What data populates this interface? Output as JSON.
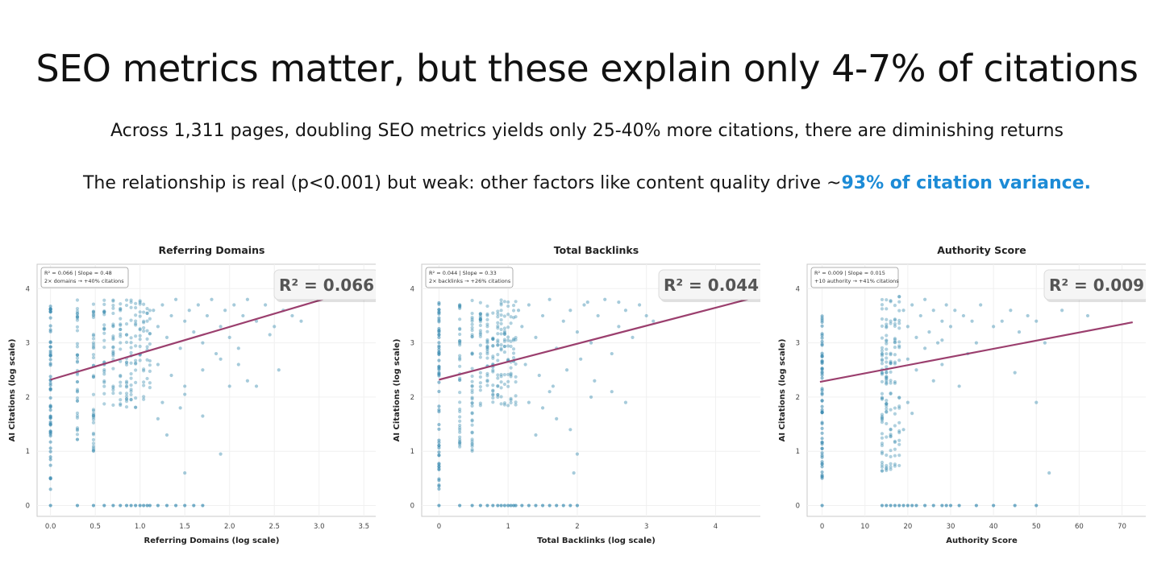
{
  "header": {
    "title": "SEO metrics matter, but these explain only 4-7% of citations",
    "subtitle1": "Across 1,311 pages, doubling SEO metrics yields only 25-40% more citations, there are diminishing returns",
    "subtitle2_prefix": "The relationship is real (p<0.001) but weak: other factors like content quality drive ~",
    "subtitle2_highlight": "93% of citation variance."
  },
  "colors": {
    "points": "#3a8bb0",
    "fit_line": "#9b3f6e",
    "highlight": "#1c8bd6"
  },
  "chart_data": [
    {
      "type": "scatter",
      "title": "Referring Domains",
      "xlabel": "Referring Domains (log scale)",
      "ylabel": "AI Citations (log scale)",
      "xlim": [
        -0.15,
        3.75
      ],
      "ylim": [
        -0.2,
        4.45
      ],
      "xticks": [
        0.0,
        0.5,
        1.0,
        1.5,
        2.0,
        2.5,
        3.0,
        3.5
      ],
      "xticklabels": [
        "0.0",
        "0.5",
        "1.0",
        "1.5",
        "2.0",
        "2.5",
        "3.0",
        "3.5"
      ],
      "yticks": [
        0,
        1,
        2,
        3,
        4
      ],
      "stats_text": [
        "R² = 0.066  |  Slope = 0.48",
        "2× domains → +40% citations"
      ],
      "r2_label": "R² = 0.066",
      "fit": {
        "x0": 0.0,
        "y0": 2.32,
        "x1": 3.1,
        "y1": 3.83
      },
      "x_columns": [
        0.0,
        0.3,
        0.48,
        0.6,
        0.7,
        0.78,
        0.85,
        0.9,
        0.95,
        1.0,
        1.04,
        1.08,
        1.11
      ],
      "scatter_points": [
        [
          1.15,
          3.6
        ],
        [
          1.2,
          3.3
        ],
        [
          1.25,
          3.7
        ],
        [
          1.3,
          3.1
        ],
        [
          1.35,
          3.5
        ],
        [
          1.4,
          3.8
        ],
        [
          1.45,
          2.9
        ],
        [
          1.5,
          3.4
        ],
        [
          1.55,
          3.6
        ],
        [
          1.6,
          3.2
        ],
        [
          1.65,
          3.7
        ],
        [
          1.7,
          3.0
        ],
        [
          1.75,
          3.5
        ],
        [
          1.8,
          3.8
        ],
        [
          1.85,
          2.8
        ],
        [
          1.9,
          3.3
        ],
        [
          1.95,
          3.6
        ],
        [
          2.0,
          3.1
        ],
        [
          2.05,
          3.7
        ],
        [
          2.1,
          2.9
        ],
        [
          2.15,
          3.5
        ],
        [
          2.2,
          3.8
        ],
        [
          2.3,
          3.4
        ],
        [
          2.4,
          3.7
        ],
        [
          2.5,
          3.3
        ],
        [
          2.6,
          3.6
        ],
        [
          2.7,
          3.5
        ],
        [
          1.2,
          2.6
        ],
        [
          1.35,
          2.4
        ],
        [
          1.5,
          2.2
        ],
        [
          1.7,
          2.5
        ],
        [
          1.9,
          2.7
        ],
        [
          2.1,
          2.6
        ],
        [
          2.3,
          2.2
        ],
        [
          2.55,
          2.5
        ],
        [
          1.25,
          1.9
        ],
        [
          1.45,
          1.8
        ],
        [
          1.3,
          1.3
        ],
        [
          1.5,
          2.05
        ],
        [
          1.7,
          1.65
        ],
        [
          1.9,
          0.95
        ],
        [
          1.5,
          0.6
        ],
        [
          1.2,
          1.6
        ],
        [
          2.0,
          2.2
        ],
        [
          2.2,
          2.3
        ],
        [
          2.45,
          3.15
        ],
        [
          2.8,
          3.4
        ]
      ],
      "zero_points": [
        0.0,
        0.3,
        0.48,
        0.6,
        0.7,
        0.78,
        0.85,
        0.9,
        0.95,
        1.0,
        1.04,
        1.08,
        1.11,
        1.2,
        1.3,
        1.4,
        1.5,
        1.6,
        1.7
      ]
    },
    {
      "type": "scatter",
      "title": "Total Backlinks",
      "xlabel": "Total Backlinks (log scale)",
      "ylabel": "AI Citations (log scale)",
      "xlim": [
        -0.25,
        4.8
      ],
      "ylim": [
        -0.2,
        4.45
      ],
      "xticks": [
        0,
        1,
        2,
        3,
        4
      ],
      "xticklabels": [
        "0",
        "1",
        "2",
        "3",
        "4"
      ],
      "yticks": [
        0,
        1,
        2,
        3,
        4
      ],
      "stats_text": [
        "R² = 0.044  |  Slope = 0.33",
        "2× backlinks → +26% citations"
      ],
      "r2_label": "R² = 0.044",
      "fit": {
        "x0": 0.0,
        "y0": 2.32,
        "x1": 4.55,
        "y1": 3.83
      },
      "x_columns": [
        0.0,
        0.3,
        0.48,
        0.6,
        0.7,
        0.78,
        0.85,
        0.9,
        0.95,
        1.0,
        1.04,
        1.08,
        1.11
      ],
      "scatter_points": [
        [
          1.15,
          3.6
        ],
        [
          1.2,
          3.3
        ],
        [
          1.3,
          3.7
        ],
        [
          1.4,
          3.1
        ],
        [
          1.5,
          3.5
        ],
        [
          1.6,
          3.8
        ],
        [
          1.7,
          2.9
        ],
        [
          1.8,
          3.4
        ],
        [
          1.9,
          3.6
        ],
        [
          2.0,
          3.2
        ],
        [
          2.1,
          3.7
        ],
        [
          2.2,
          3.0
        ],
        [
          2.3,
          3.5
        ],
        [
          2.4,
          3.8
        ],
        [
          2.5,
          2.8
        ],
        [
          2.6,
          3.3
        ],
        [
          2.7,
          3.6
        ],
        [
          2.8,
          3.1
        ],
        [
          2.9,
          3.7
        ],
        [
          3.0,
          3.5
        ],
        [
          3.1,
          3.4
        ],
        [
          1.25,
          2.6
        ],
        [
          1.45,
          2.4
        ],
        [
          1.65,
          2.2
        ],
        [
          1.85,
          2.5
        ],
        [
          2.05,
          2.7
        ],
        [
          2.25,
          2.3
        ],
        [
          2.5,
          2.1
        ],
        [
          1.3,
          1.9
        ],
        [
          1.5,
          1.8
        ],
        [
          1.7,
          1.6
        ],
        [
          1.9,
          1.4
        ],
        [
          2.0,
          0.95
        ],
        [
          1.95,
          0.6
        ],
        [
          1.6,
          2.1
        ],
        [
          2.2,
          2.0
        ],
        [
          2.7,
          1.9
        ],
        [
          1.4,
          1.3
        ],
        [
          2.15,
          3.75
        ],
        [
          2.6,
          3.75
        ]
      ],
      "zero_points": [
        0.0,
        0.3,
        0.48,
        0.6,
        0.7,
        0.78,
        0.85,
        0.9,
        0.95,
        1.0,
        1.04,
        1.08,
        1.11,
        1.2,
        1.3,
        1.4,
        1.5,
        1.6,
        1.7,
        1.8,
        1.9,
        2.0
      ]
    },
    {
      "type": "scatter",
      "title": "Authority Score",
      "xlabel": "Authority Score",
      "ylabel": "AI Citations (log scale)",
      "xlim": [
        -3.5,
        78
      ],
      "ylim": [
        -0.2,
        4.45
      ],
      "xticks": [
        0,
        10,
        20,
        30,
        40,
        50,
        60,
        70
      ],
      "xticklabels": [
        "0",
        "10",
        "20",
        "30",
        "40",
        "50",
        "60",
        "70"
      ],
      "yticks": [
        0,
        1,
        2,
        3,
        4
      ],
      "stats_text": [
        "R² = 0.009  |  Slope = 0.015",
        "+10 authority → +41% citations"
      ],
      "r2_label": "R² = 0.009",
      "fit": {
        "x0": -0.5,
        "y0": 2.28,
        "x1": 72.5,
        "y1": 3.38
      },
      "x_columns": [
        0.0,
        14.0,
        15.0,
        16.0,
        17.0,
        18.0
      ],
      "scatter_points": [
        [
          19,
          3.6
        ],
        [
          20,
          3.3
        ],
        [
          21,
          3.7
        ],
        [
          22,
          3.1
        ],
        [
          23,
          3.5
        ],
        [
          24,
          3.8
        ],
        [
          25,
          3.2
        ],
        [
          26,
          3.6
        ],
        [
          27,
          3.0
        ],
        [
          28,
          3.4
        ],
        [
          29,
          3.7
        ],
        [
          30,
          3.3
        ],
        [
          31,
          3.6
        ],
        [
          33,
          3.5
        ],
        [
          35,
          3.4
        ],
        [
          37,
          3.7
        ],
        [
          40,
          3.3
        ],
        [
          44,
          3.6
        ],
        [
          46,
          3.2
        ],
        [
          48,
          3.5
        ],
        [
          50,
          3.4
        ],
        [
          52,
          3.0
        ],
        [
          56,
          3.6
        ],
        [
          62,
          3.5
        ],
        [
          20,
          2.7
        ],
        [
          22,
          2.5
        ],
        [
          24,
          2.9
        ],
        [
          26,
          2.3
        ],
        [
          28,
          2.6
        ],
        [
          32,
          2.2
        ],
        [
          34,
          2.8
        ],
        [
          45,
          2.45
        ],
        [
          50,
          1.9
        ],
        [
          20,
          1.9
        ],
        [
          21,
          1.7
        ],
        [
          19,
          1.4
        ],
        [
          53,
          0.6
        ],
        [
          28,
          3.05
        ],
        [
          36,
          3.0
        ],
        [
          42,
          3.4
        ]
      ],
      "zero_points": [
        0.0,
        14.0,
        15.0,
        16.0,
        17.0,
        18.0,
        19,
        20,
        21,
        22,
        24,
        26,
        28,
        29,
        30,
        32,
        36,
        40,
        45,
        50
      ]
    }
  ]
}
